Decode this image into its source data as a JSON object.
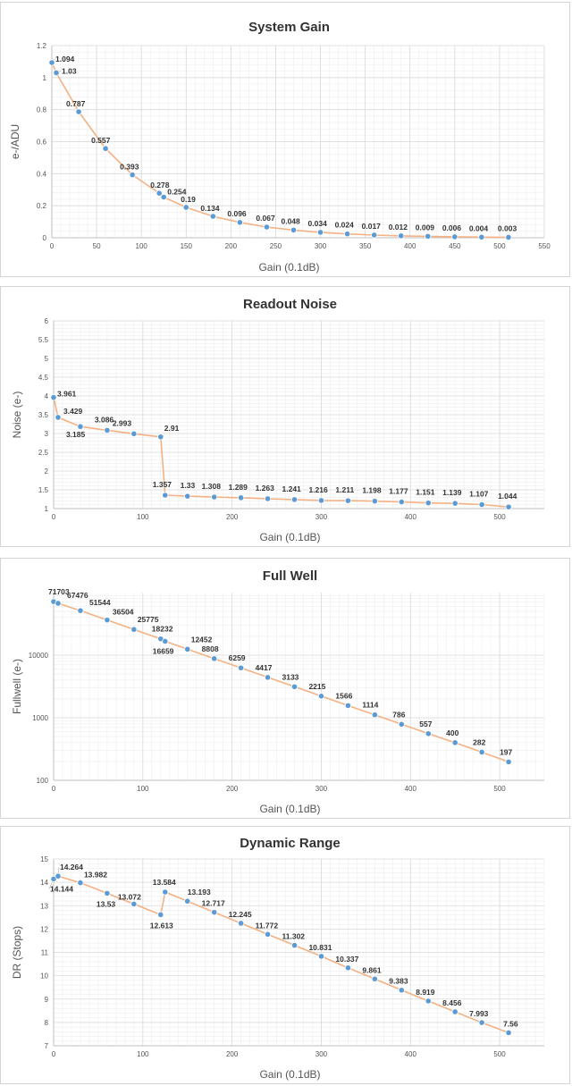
{
  "chart_data": [
    {
      "type": "line",
      "title": "System Gain",
      "xlabel": "Gain (0.1dB)",
      "ylabel": "e-/ADU",
      "xlim": [
        0,
        550
      ],
      "ylim": [
        0,
        1.2
      ],
      "x_ticks": [
        0,
        50,
        100,
        150,
        200,
        250,
        300,
        350,
        400,
        450,
        500,
        550
      ],
      "y_ticks": [
        0,
        0.2,
        0.4,
        0.6,
        0.8,
        1,
        1.2
      ],
      "y_scale": "linear",
      "grid": true,
      "series_color": "#f4b183",
      "marker_color": "#5b9bd5",
      "x": [
        0,
        5,
        30,
        60,
        90,
        120,
        125,
        150,
        180,
        210,
        240,
        270,
        300,
        330,
        360,
        390,
        420,
        450,
        480,
        510
      ],
      "values": [
        1.094,
        1.03,
        0.787,
        0.557,
        0.393,
        0.278,
        0.254,
        0.19,
        0.134,
        0.096,
        0.067,
        0.048,
        0.034,
        0.024,
        0.017,
        0.012,
        0.009,
        0.006,
        0.004,
        0.003
      ],
      "labels": [
        "1.094",
        "1.03",
        "0.787",
        "0.557",
        "0.393",
        "0.278",
        "0.254",
        "0.19",
        "0.134",
        "0.096",
        "0.067",
        "0.048",
        "0.034",
        "0.024",
        "0.017",
        "0.012",
        "0.009",
        "0.006",
        "0.004",
        "0.003"
      ]
    },
    {
      "type": "line",
      "title": "Readout Noise",
      "xlabel": "Gain (0.1dB)",
      "ylabel": "Noise (e-)",
      "xlim": [
        0,
        550
      ],
      "ylim": [
        1,
        6
      ],
      "x_ticks": [
        0,
        100,
        200,
        300,
        400,
        500
      ],
      "y_ticks": [
        1,
        1.5,
        2,
        2.5,
        3,
        3.5,
        4,
        4.5,
        5,
        5.5,
        6
      ],
      "y_scale": "linear",
      "grid": true,
      "series_color": "#f4b183",
      "marker_color": "#5b9bd5",
      "x": [
        0,
        5,
        30,
        60,
        90,
        120,
        125,
        150,
        180,
        210,
        240,
        270,
        300,
        330,
        360,
        390,
        420,
        450,
        480,
        510
      ],
      "values": [
        3.961,
        3.429,
        3.185,
        3.086,
        2.993,
        2.91,
        1.357,
        1.33,
        1.308,
        1.289,
        1.263,
        1.241,
        1.216,
        1.211,
        1.198,
        1.177,
        1.151,
        1.139,
        1.107,
        1.044
      ],
      "labels": [
        "3.961",
        "3.429",
        "3.185",
        "3.086",
        "2.993",
        "2.91",
        "1.357",
        "1.33",
        "1.308",
        "1.289",
        "1.263",
        "1.241",
        "1.216",
        "1.211",
        "1.198",
        "1.177",
        "1.151",
        "1.139",
        "1.107",
        "1.044"
      ]
    },
    {
      "type": "line",
      "title": "Full Well",
      "xlabel": "Gain (0.1dB)",
      "ylabel": "Fullwell (e-)",
      "xlim": [
        0,
        550
      ],
      "ylim": [
        100,
        100000
      ],
      "x_ticks": [
        0,
        100,
        200,
        300,
        400,
        500
      ],
      "y_ticks": [
        100,
        1000,
        10000
      ],
      "y_scale": "log",
      "grid": true,
      "series_color": "#f4b183",
      "marker_color": "#5b9bd5",
      "x": [
        0,
        5,
        30,
        60,
        90,
        120,
        125,
        150,
        180,
        210,
        240,
        270,
        300,
        330,
        360,
        390,
        420,
        450,
        480,
        510
      ],
      "values": [
        71703,
        67476,
        51544,
        36504,
        25775,
        18232,
        16659,
        12452,
        8808,
        6259,
        4417,
        3133,
        2215,
        1566,
        1114,
        786,
        557,
        400,
        282,
        197
      ],
      "labels": [
        "71703",
        "67476",
        "51544",
        "36504",
        "25775",
        "18232",
        "16659",
        "12452",
        "8808",
        "6259",
        "4417",
        "3133",
        "2215",
        "1566",
        "1114",
        "786",
        "557",
        "400",
        "282",
        "197"
      ]
    },
    {
      "type": "line",
      "title": "Dynamic Range",
      "xlabel": "Gain (0.1dB)",
      "ylabel": "DR (Stops)",
      "xlim": [
        0,
        550
      ],
      "ylim": [
        7,
        15
      ],
      "x_ticks": [
        0,
        100,
        200,
        300,
        400,
        500
      ],
      "y_ticks": [
        7,
        8,
        9,
        10,
        11,
        12,
        13,
        14,
        15
      ],
      "y_scale": "linear",
      "grid": true,
      "series_color": "#f4b183",
      "marker_color": "#5b9bd5",
      "x": [
        0,
        5,
        30,
        60,
        90,
        120,
        125,
        150,
        180,
        210,
        240,
        270,
        300,
        330,
        360,
        390,
        420,
        450,
        480,
        510
      ],
      "values": [
        14.144,
        14.264,
        13.982,
        13.53,
        13.072,
        12.613,
        13.584,
        13.193,
        12.717,
        12.245,
        11.772,
        11.302,
        10.831,
        10.337,
        9.861,
        9.383,
        8.919,
        8.456,
        7.993,
        7.56
      ],
      "labels": [
        "14.144",
        "14.264",
        "13.982",
        "13.53",
        "13.072",
        "12.613",
        "13.584",
        "13.193",
        "12.717",
        "12.245",
        "11.772",
        "11.302",
        "10.831",
        "10.337",
        "9.861",
        "9.383",
        "8.919",
        "8.456",
        "7.993",
        "7.56"
      ]
    }
  ]
}
